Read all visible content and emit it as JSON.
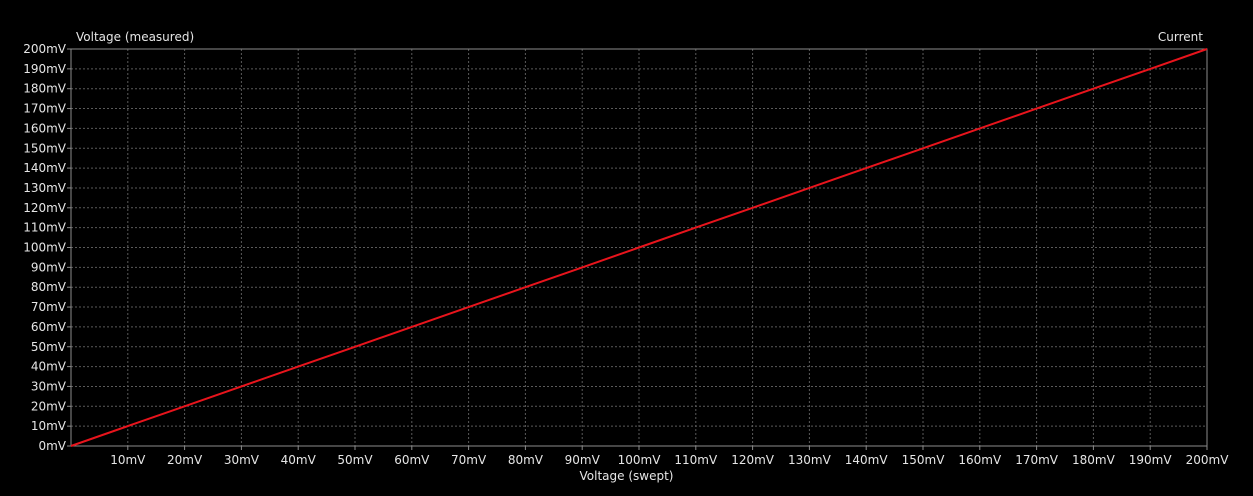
{
  "chart_data": {
    "type": "line",
    "title": "",
    "ylabel": "Voltage (measured)",
    "xlabel": "Voltage (swept)",
    "legend": "Current",
    "legend_position": "top-right",
    "xlim": [
      0,
      200
    ],
    "ylim": [
      0,
      200
    ],
    "unit": "mV",
    "x_ticks": [
      10,
      20,
      30,
      40,
      50,
      60,
      70,
      80,
      90,
      100,
      110,
      120,
      130,
      140,
      150,
      160,
      170,
      180,
      190,
      200
    ],
    "x_tick_labels": [
      "10mV",
      "20mV",
      "30mV",
      "40mV",
      "50mV",
      "60mV",
      "70mV",
      "80mV",
      "90mV",
      "100mV",
      "110mV",
      "120mV",
      "130mV",
      "140mV",
      "150mV",
      "160mV",
      "170mV",
      "180mV",
      "190mV",
      "200mV"
    ],
    "y_ticks": [
      0,
      10,
      20,
      30,
      40,
      50,
      60,
      70,
      80,
      90,
      100,
      110,
      120,
      130,
      140,
      150,
      160,
      170,
      180,
      190,
      200
    ],
    "y_tick_labels": [
      "0mV",
      "10mV",
      "20mV",
      "30mV",
      "40mV",
      "50mV",
      "60mV",
      "70mV",
      "80mV",
      "90mV",
      "100mV",
      "110mV",
      "120mV",
      "130mV",
      "140mV",
      "150mV",
      "160mV",
      "170mV",
      "180mV",
      "190mV",
      "200mV"
    ],
    "grid": true,
    "series": [
      {
        "name": "Current",
        "color": "#e8141c",
        "x": [
          0,
          10,
          20,
          30,
          40,
          50,
          60,
          70,
          80,
          90,
          100,
          110,
          120,
          130,
          140,
          150,
          160,
          170,
          180,
          190,
          200
        ],
        "y": [
          0,
          10,
          20,
          30,
          40,
          50,
          60,
          70,
          80,
          90,
          100,
          110,
          120,
          130,
          140,
          150,
          160,
          170,
          180,
          190,
          200
        ]
      }
    ]
  }
}
